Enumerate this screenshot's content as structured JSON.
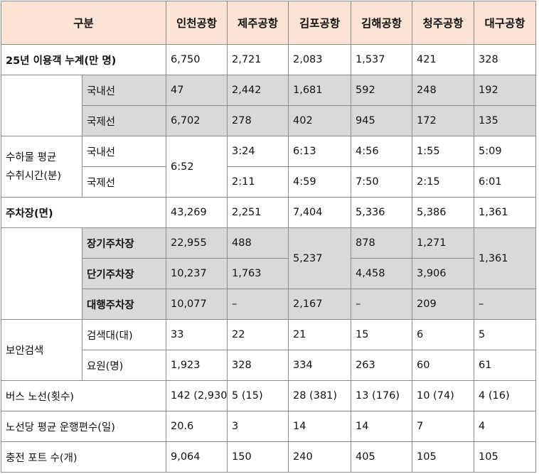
{
  "header": {
    "category": "구분",
    "airports": [
      "인천공항",
      "제주공항",
      "김포공항",
      "김해공항",
      "청주공항",
      "대구공항"
    ]
  },
  "passengers": {
    "label": "25년 이용객 누계(만 명)",
    "total": [
      "6,750",
      "2,721",
      "2,083",
      "1,537",
      "421",
      "328"
    ],
    "domestic_label": "국내선",
    "domestic": [
      "47",
      "2,442",
      "1,681",
      "592",
      "248",
      "192"
    ],
    "international_label": "국제선",
    "international": [
      "6,702",
      "278",
      "402",
      "945",
      "172",
      "135"
    ]
  },
  "baggage": {
    "label_line1": "수하물 평균",
    "label_line2": "수취시간(분)",
    "domestic_label": "국내선",
    "international_label": "국제선",
    "incheon_combined": "6:52",
    "domestic": [
      "3:24",
      "6:13",
      "4:56",
      "1:55",
      "5:09"
    ],
    "international": [
      "2:11",
      "4:59",
      "7:50",
      "2:15",
      "6:01"
    ]
  },
  "parking": {
    "label": "주차장(면)",
    "total": [
      "43,269",
      "2,251",
      "7,404",
      "5,336",
      "5,386",
      "1,361"
    ],
    "long_term_label": "장기주차장",
    "long_term": {
      "incheon": "22,955",
      "jeju": "488",
      "gimhae": "878",
      "cheongju": "1,271"
    },
    "short_term_label": "단기주차장",
    "short_term": {
      "incheon": "10,237",
      "jeju": "1,763",
      "gimhae": "4,458",
      "cheongju": "3,906"
    },
    "gimpo_long_short": "5,237",
    "daegu_long_short": "1,361",
    "valet_label": "대행주차장",
    "valet": [
      "10,077",
      "–",
      "2,167",
      "–",
      "209",
      "–"
    ]
  },
  "security": {
    "label": "보안검색",
    "lanes_label": "검색대(대)",
    "lanes": [
      "33",
      "22",
      "21",
      "15",
      "6",
      "5"
    ],
    "staff_label": "요원(명)",
    "staff": [
      "1,923",
      "328",
      "334",
      "263",
      "60",
      "61"
    ]
  },
  "bus": {
    "label": "버스 노선(횟수)",
    "values": [
      "142 (2,930)",
      "5 (15)",
      "28 (381)",
      "13 (176)",
      "10 (74)",
      "4 (16)"
    ]
  },
  "runs": {
    "label": "노선당 평균 운행편수(일)",
    "values": [
      "20.6",
      "3",
      "14",
      "14",
      "7",
      "4"
    ]
  },
  "charging": {
    "label": "충전 포트 수(개)",
    "values": [
      "9,064",
      "150",
      "240",
      "405",
      "105",
      "105"
    ]
  },
  "colors": {
    "header_bg": "#fbe4d5",
    "shaded_bg": "#d9d9d9",
    "border": "#8c8c8c"
  }
}
